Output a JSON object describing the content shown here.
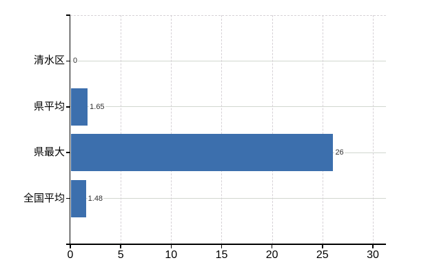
{
  "chart": {
    "background": "#ffffff",
    "bar_color": "#3c6fad",
    "axis_color": "#000000",
    "vertical_grid_color": "#d6d1d6",
    "horizontal_grid_color": "#d1d7cf",
    "category_label_color": "#000000",
    "x_tick_label_color": "#000000",
    "value_label_color": "#2f2f2f"
  },
  "chart_data": {
    "type": "bar",
    "orientation": "horizontal",
    "title": "",
    "xlabel": "",
    "ylabel": "",
    "categories": [
      "清水区",
      "県平均",
      "県最大",
      "全国平均"
    ],
    "values": [
      0,
      1.65,
      26,
      1.48
    ],
    "value_labels": [
      "0",
      "1.65",
      "26",
      "1.48"
    ],
    "x_ticks": [
      0,
      5,
      10,
      15,
      20,
      25,
      30
    ],
    "xlim": [
      0,
      31.3
    ],
    "grid": {
      "vertical": "dashed",
      "horizontal": "solid",
      "top_border": "dashed"
    },
    "legend": "none"
  }
}
